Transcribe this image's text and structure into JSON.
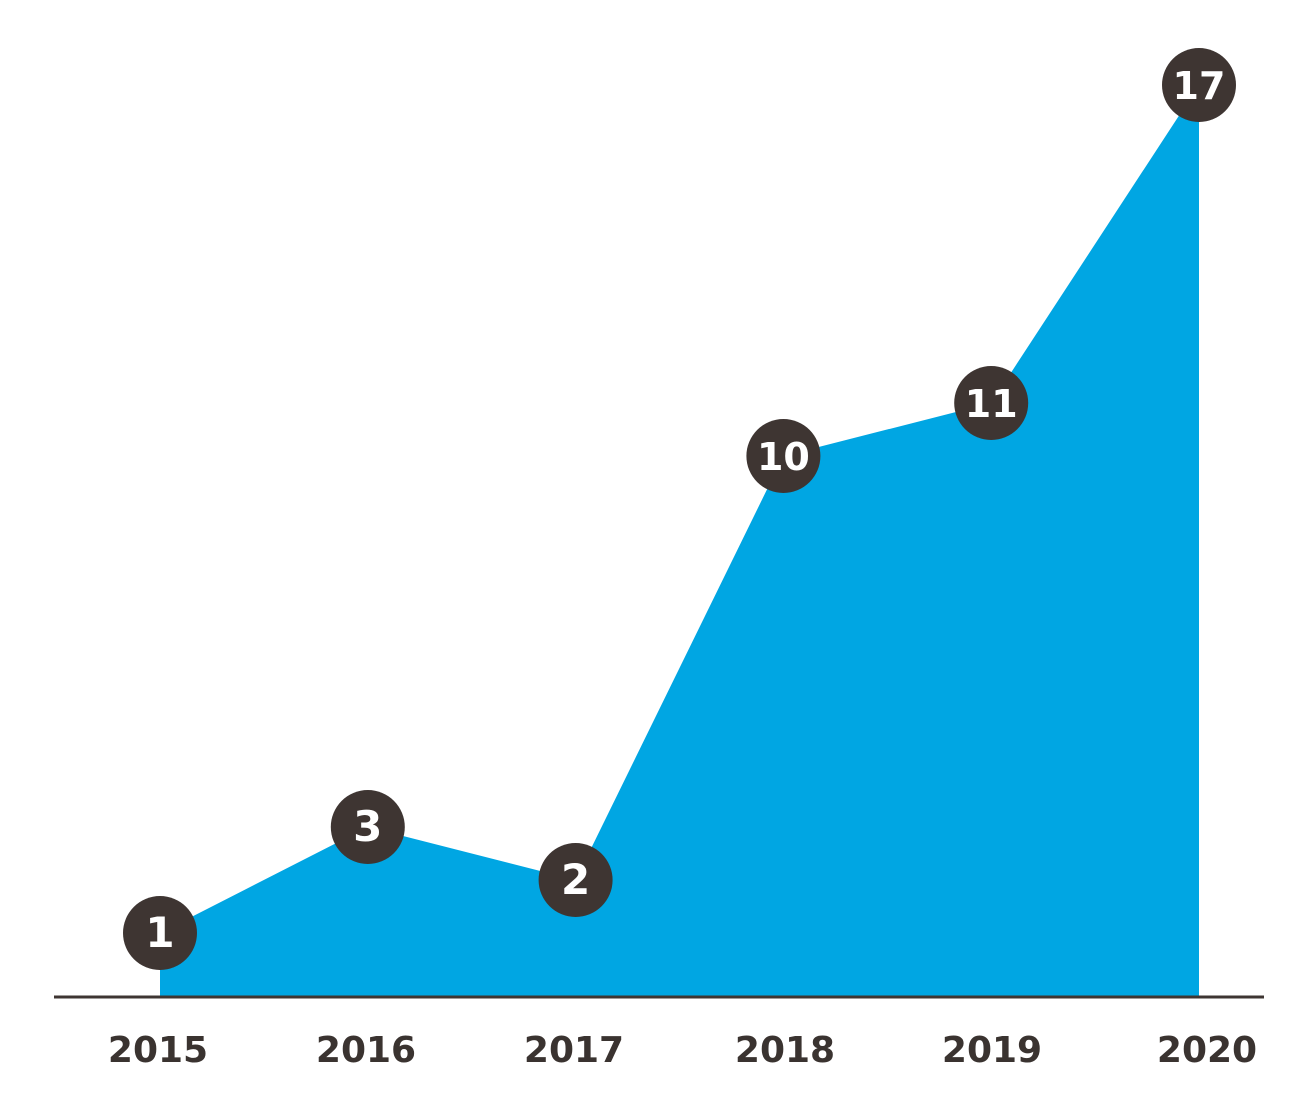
{
  "chart_data": {
    "type": "area",
    "categories": [
      "2015",
      "2016",
      "2017",
      "2018",
      "2019",
      "2020"
    ],
    "values": [
      1,
      3,
      2,
      10,
      11,
      17
    ],
    "data_labels": [
      "1",
      "3",
      "2",
      "10",
      "11",
      "17"
    ],
    "title": "",
    "xlabel": "",
    "ylabel": "",
    "ylim": [
      0,
      17
    ],
    "grid": false,
    "legend": "none",
    "colors": {
      "area": "#00a6e3",
      "marker": "#3e3532",
      "marker_text": "#ffffff",
      "axis": "#3e3532",
      "tick_text": "#3a3330"
    }
  }
}
